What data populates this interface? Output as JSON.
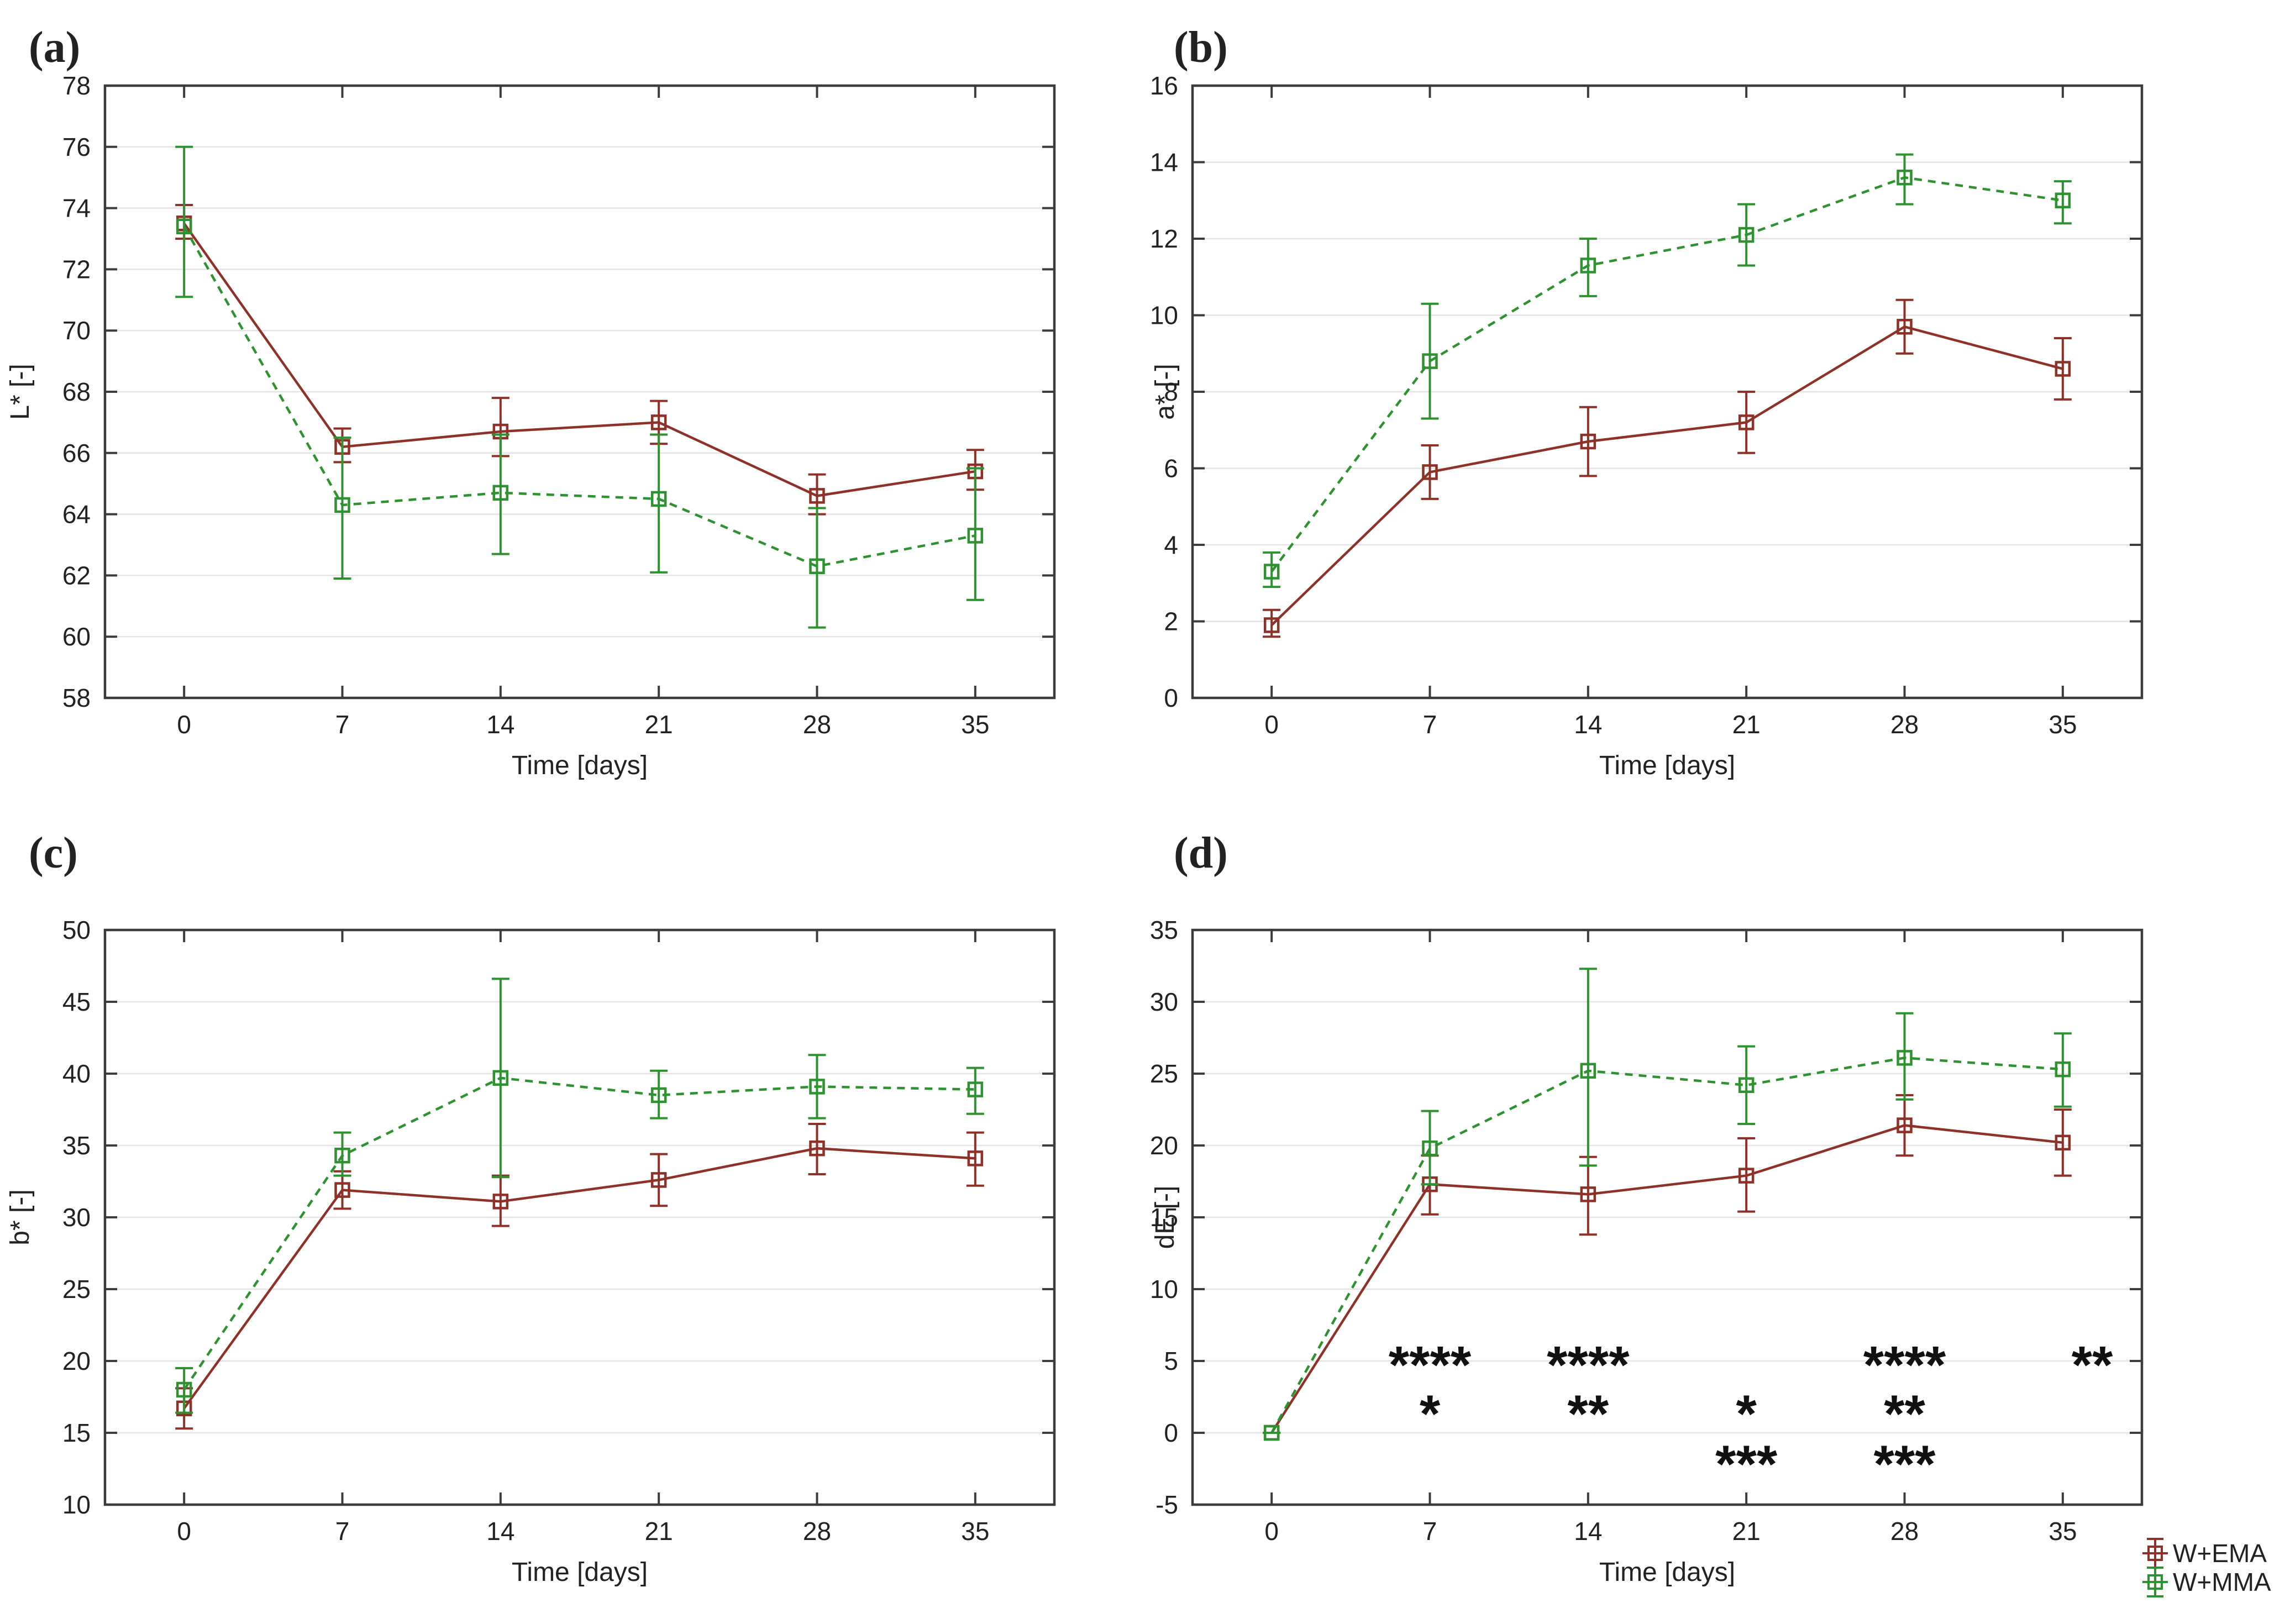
{
  "figure_background": "#ffffff",
  "styles": {
    "frame_color": "#3c3c3c",
    "grid_color": "#e4e4e4",
    "text_color": "#222222",
    "annotation_color": "#111111",
    "ema_color": "#8e3129",
    "mma_color": "#2f9231"
  },
  "legend": {
    "position": "bottom-right",
    "items": [
      {
        "label": "W+EMA",
        "color": "#8e3129"
      },
      {
        "label": "W+MMA",
        "color": "#2f9231"
      }
    ]
  },
  "chart_data": [
    {
      "id": "a",
      "type": "line",
      "panel_label": "(a)",
      "xlabel": "Time [days]",
      "ylabel": "L* [-]",
      "x_categories": [
        0,
        7,
        14,
        21,
        28,
        35
      ],
      "ylim": [
        58,
        78
      ],
      "ytick_step": 2,
      "grid": "horizontal",
      "series": [
        {
          "name": "W+EMA",
          "color": "#8e3129",
          "line": "solid",
          "values": [
            73.5,
            66.2,
            66.7,
            67.0,
            64.6,
            65.4
          ],
          "err_low": [
            73.0,
            65.7,
            65.9,
            66.3,
            64.0,
            64.8
          ],
          "err_high": [
            74.1,
            66.8,
            67.8,
            67.7,
            65.3,
            66.1
          ]
        },
        {
          "name": "W+MMA",
          "color": "#2f9231",
          "line": "dashed",
          "values": [
            73.4,
            64.3,
            64.7,
            64.5,
            62.3,
            63.3
          ],
          "err_low": [
            71.1,
            61.9,
            62.7,
            62.1,
            60.3,
            61.2
          ],
          "err_high": [
            76.0,
            66.5,
            66.6,
            66.6,
            64.2,
            65.5
          ]
        }
      ]
    },
    {
      "id": "b",
      "type": "line",
      "panel_label": "(b)",
      "xlabel": "Time [days]",
      "ylabel": "a* [-]",
      "x_categories": [
        0,
        7,
        14,
        21,
        28,
        35
      ],
      "ylim": [
        0,
        16
      ],
      "ytick_step": 2,
      "grid": "horizontal",
      "series": [
        {
          "name": "W+EMA",
          "color": "#8e3129",
          "line": "solid",
          "values": [
            1.9,
            5.9,
            6.7,
            7.2,
            9.7,
            8.6
          ],
          "err_low": [
            1.6,
            5.2,
            5.8,
            6.4,
            9.0,
            7.8
          ],
          "err_high": [
            2.3,
            6.6,
            7.6,
            8.0,
            10.4,
            9.4
          ]
        },
        {
          "name": "W+MMA",
          "color": "#2f9231",
          "line": "dashed",
          "values": [
            3.3,
            8.8,
            11.3,
            12.1,
            13.6,
            13.0
          ],
          "err_low": [
            2.9,
            7.3,
            10.5,
            11.3,
            12.9,
            12.4
          ],
          "err_high": [
            3.8,
            10.3,
            12.0,
            12.9,
            14.2,
            13.5
          ]
        }
      ]
    },
    {
      "id": "c",
      "type": "line",
      "panel_label": "(c)",
      "xlabel": "Time [days]",
      "ylabel": "b* [-]",
      "x_categories": [
        0,
        7,
        14,
        21,
        28,
        35
      ],
      "ylim": [
        10,
        50
      ],
      "ytick_step": 5,
      "grid": "horizontal",
      "series": [
        {
          "name": "W+EMA",
          "color": "#8e3129",
          "line": "solid",
          "values": [
            16.7,
            31.9,
            31.1,
            32.6,
            34.8,
            34.1
          ],
          "err_low": [
            15.3,
            30.6,
            29.4,
            30.8,
            33.0,
            32.2
          ],
          "err_high": [
            18.1,
            33.2,
            32.9,
            34.4,
            36.5,
            35.9
          ]
        },
        {
          "name": "W+MMA",
          "color": "#2f9231",
          "line": "dashed",
          "values": [
            18.0,
            34.3,
            39.7,
            38.5,
            39.1,
            38.9
          ],
          "err_low": [
            16.4,
            32.9,
            32.8,
            36.9,
            36.9,
            37.2
          ],
          "err_high": [
            19.5,
            35.9,
            46.6,
            40.2,
            41.3,
            40.4
          ]
        }
      ]
    },
    {
      "id": "d",
      "type": "line",
      "panel_label": "(d)",
      "xlabel": "Time [days]",
      "ylabel": "dE [-]",
      "x_categories": [
        0,
        7,
        14,
        21,
        28,
        35
      ],
      "ylim": [
        -5,
        35
      ],
      "ytick_step": 5,
      "grid": "horizontal",
      "series": [
        {
          "name": "W+EMA",
          "color": "#8e3129",
          "line": "solid",
          "values": [
            0,
            17.3,
            16.6,
            17.9,
            21.4,
            20.2
          ],
          "err_low": [
            0,
            15.2,
            13.8,
            15.4,
            19.3,
            17.9
          ],
          "err_high": [
            0,
            19.3,
            19.2,
            20.5,
            23.5,
            22.5
          ]
        },
        {
          "name": "W+MMA",
          "color": "#2f9231",
          "line": "dashed",
          "values": [
            0,
            19.8,
            25.2,
            24.2,
            26.1,
            25.3
          ],
          "err_low": [
            0,
            17.3,
            18.6,
            21.5,
            23.2,
            22.7
          ],
          "err_high": [
            0,
            22.4,
            32.3,
            26.9,
            29.2,
            27.8
          ]
        }
      ],
      "annotations": [
        {
          "x_day": 7,
          "y": 6.0,
          "text": "****"
        },
        {
          "x_day": 14,
          "y": 6.0,
          "text": "****"
        },
        {
          "x_day": 28,
          "y": 6.0,
          "text": "****"
        },
        {
          "x_day": 36.3,
          "y": 6.0,
          "text": "**"
        },
        {
          "x_day": 7,
          "y": 2.6,
          "text": "*"
        },
        {
          "x_day": 14,
          "y": 2.6,
          "text": "**"
        },
        {
          "x_day": 21,
          "y": 2.6,
          "text": "*"
        },
        {
          "x_day": 28,
          "y": 2.6,
          "text": "**"
        },
        {
          "x_day": 21,
          "y": -0.9,
          "text": "***"
        },
        {
          "x_day": 28,
          "y": -0.9,
          "text": "***"
        }
      ],
      "show_legend": true
    }
  ]
}
